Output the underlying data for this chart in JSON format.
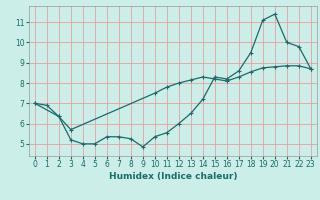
{
  "xlabel": "Humidex (Indice chaleur)",
  "bg_color": "#cceee8",
  "line_color": "#1a6b6b",
  "grid_color": "#e8a0a0",
  "xlim": [
    -0.5,
    23.5
  ],
  "ylim": [
    4.4,
    11.8
  ],
  "xticks": [
    0,
    1,
    2,
    3,
    4,
    5,
    6,
    7,
    8,
    9,
    10,
    11,
    12,
    13,
    14,
    15,
    16,
    17,
    18,
    19,
    20,
    21,
    22,
    23
  ],
  "yticks": [
    5,
    6,
    7,
    8,
    9,
    10,
    11
  ],
  "line1_x": [
    0,
    1,
    2,
    3,
    4,
    5,
    6,
    7,
    8,
    9,
    10,
    11,
    12,
    13,
    14,
    15,
    16,
    17,
    18,
    19,
    20,
    21,
    22,
    23
  ],
  "line1_y": [
    7.0,
    6.9,
    6.35,
    5.2,
    5.0,
    5.0,
    5.35,
    5.35,
    5.25,
    4.85,
    5.35,
    5.55,
    6.0,
    6.5,
    7.2,
    8.3,
    8.2,
    8.6,
    9.5,
    11.1,
    11.4,
    10.0,
    9.8,
    8.7
  ],
  "line2_x": [
    0,
    2,
    3,
    10,
    11,
    12,
    13,
    14,
    15,
    16,
    17,
    18,
    19,
    20,
    21,
    22,
    23
  ],
  "line2_y": [
    7.0,
    6.35,
    5.7,
    7.5,
    7.8,
    8.0,
    8.15,
    8.3,
    8.2,
    8.1,
    8.3,
    8.55,
    8.75,
    8.8,
    8.85,
    8.85,
    8.7
  ]
}
